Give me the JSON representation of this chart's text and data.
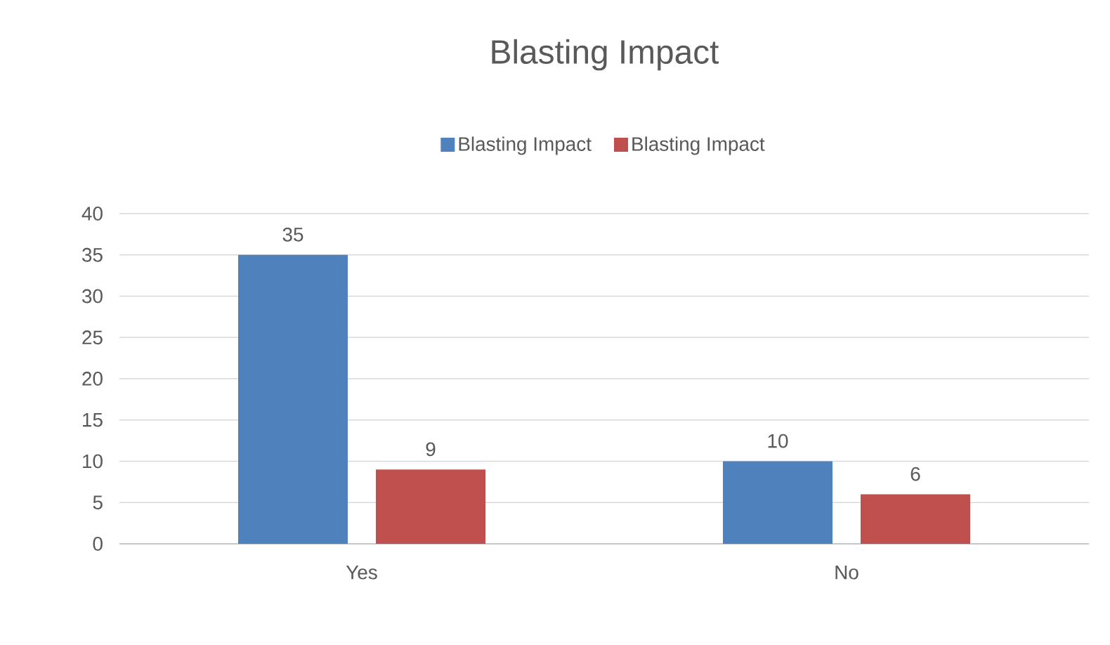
{
  "chart_data": {
    "type": "bar",
    "title": "Blasting Impact",
    "categories": [
      "Yes",
      "No"
    ],
    "series": [
      {
        "name": "Blasting Impact",
        "color": "#4f81bd",
        "values": [
          35,
          10
        ]
      },
      {
        "name": "Blasting Impact",
        "color": "#c0504d",
        "values": [
          9,
          6
        ]
      }
    ],
    "ylim": [
      0,
      40
    ],
    "yticks": [
      0,
      5,
      10,
      15,
      20,
      25,
      30,
      35,
      40
    ],
    "grid": "y",
    "legend": "top",
    "data_labels": true
  }
}
